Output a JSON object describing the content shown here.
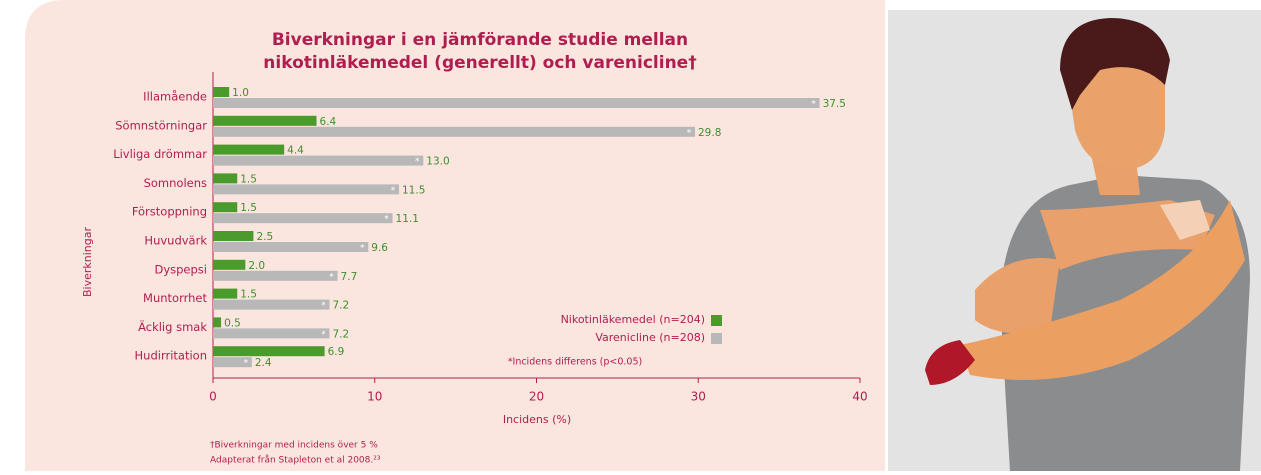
{
  "chart_data": {
    "type": "bar",
    "title_lines": [
      "Biverkningar i en jämförande studie mellan",
      "nikotinläkemedel (generellt) och varenicline†"
    ],
    "categories": [
      "Illamående",
      "Sömnstörningar",
      "Livliga drömmar",
      "Somnolens",
      "Förstoppning",
      "Huvudvärk",
      "Dyspepsi",
      "Muntorrhet",
      "Äcklig smak",
      "Hudirritation"
    ],
    "series": [
      {
        "name": "Nikotinläkemedel (n=204)",
        "color": "#4a9a2c",
        "values": [
          1.0,
          6.4,
          4.4,
          1.5,
          1.5,
          2.5,
          2.0,
          1.5,
          0.5,
          6.9
        ],
        "value_labels": [
          "1.0",
          "6.4",
          "4.4",
          "1.5",
          "1.5",
          "2.5",
          "2.0",
          "1.5",
          "0.5",
          "6.9"
        ]
      },
      {
        "name": "Varenicline (n=208)",
        "color": "#b8b8b8",
        "values": [
          37.5,
          29.8,
          13.0,
          11.5,
          11.1,
          9.6,
          7.7,
          7.2,
          7.2,
          2.4
        ],
        "value_labels": [
          "37.5",
          "29.8",
          "13.0",
          "11.5",
          "11.1",
          "9.6",
          "7.7",
          "7.2",
          "7.2",
          "2.4"
        ]
      }
    ],
    "significance_marker": "*",
    "significance_note": "*Incidens differens (p<0.05)",
    "xlim": [
      0,
      40
    ],
    "xticks": [
      0,
      10,
      20,
      30,
      40
    ],
    "xlabel": "Incidens (%)",
    "ylabel": "Biverkningar",
    "legend": "bottom-right",
    "footnotes": [
      "†Biverkningar med incidens över 5 %",
      "Adapterat från Stapleton et al 2008.²³"
    ]
  }
}
